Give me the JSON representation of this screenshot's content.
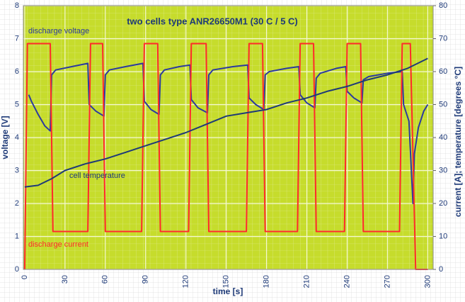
{
  "chart_data": {
    "type": "line",
    "title": "two cells type ANR26650M1 (30 C / 5 C)",
    "x_label": "time [s]",
    "y_label": "voltage [V]",
    "y2_label": "current [A]; temperature [degrees °C]",
    "xlim": [
      -1,
      304
    ],
    "xticks": [
      0,
      30,
      60,
      90,
      120,
      150,
      180,
      210,
      240,
      270,
      300
    ],
    "ylim": [
      0,
      8
    ],
    "yticks": [
      0,
      1,
      2,
      3,
      4,
      5,
      6,
      7,
      8
    ],
    "y2lim": [
      0,
      80
    ],
    "y2ticks": [
      0,
      10,
      20,
      30,
      40,
      50,
      60,
      70,
      80
    ],
    "grid": true,
    "annotations": [
      "discharge voltage",
      "cell temperature",
      "discharge current"
    ],
    "series": [
      {
        "name": "discharge voltage",
        "color": "#2b3aa0",
        "x": [
          3,
          5,
          10,
          15,
          19,
          20,
          23,
          35,
          47,
          48,
          53,
          59,
          60,
          63,
          75,
          88,
          89,
          94,
          100,
          101,
          104,
          115,
          123,
          124,
          129,
          136,
          137,
          140,
          155,
          166,
          167,
          172,
          178,
          179,
          182,
          195,
          204,
          205,
          210,
          216,
          217,
          220,
          232,
          239,
          240,
          245,
          251,
          252,
          256,
          270,
          281,
          282,
          286,
          289,
          290,
          293,
          297,
          300
        ],
        "values": [
          5.3,
          5.1,
          4.7,
          4.35,
          4.2,
          5.9,
          6.05,
          6.15,
          6.25,
          5.0,
          4.8,
          4.65,
          5.9,
          6.05,
          6.15,
          6.25,
          5.1,
          4.85,
          4.7,
          5.9,
          6.05,
          6.15,
          6.2,
          5.15,
          4.9,
          4.75,
          5.9,
          6.05,
          6.15,
          6.2,
          5.2,
          5.0,
          4.85,
          5.9,
          6.0,
          6.1,
          6.15,
          5.3,
          5.05,
          4.9,
          5.8,
          5.95,
          6.1,
          6.15,
          5.4,
          5.2,
          5.05,
          5.75,
          5.85,
          5.95,
          6.0,
          5.0,
          4.5,
          2.0,
          3.5,
          4.3,
          4.8,
          5.0
        ]
      },
      {
        "name": "discharge current",
        "color": "#ff2a2a",
        "axis": "y2",
        "x": [
          0,
          2,
          19,
          21,
          47,
          49,
          58,
          60,
          87,
          89,
          99,
          101,
          122,
          124,
          135,
          137,
          165,
          167,
          177,
          179,
          203,
          205,
          215,
          217,
          238,
          240,
          250,
          252,
          279,
          281,
          287,
          291,
          300
        ],
        "values": [
          0,
          68.5,
          68.5,
          11.5,
          11.5,
          68.5,
          68.5,
          11.5,
          11.5,
          68.5,
          68.5,
          11.5,
          11.5,
          68.5,
          68.5,
          11.5,
          11.5,
          68.5,
          68.5,
          11.5,
          11.5,
          68.5,
          68.5,
          11.5,
          11.5,
          68.5,
          68.5,
          11.5,
          11.5,
          68.5,
          68.5,
          0,
          0
        ]
      },
      {
        "name": "cell temperature",
        "color": "#1e3a78",
        "axis": "y2",
        "x": [
          0,
          10,
          20,
          30,
          45,
          60,
          75,
          90,
          105,
          120,
          135,
          150,
          165,
          180,
          195,
          210,
          225,
          240,
          255,
          270,
          285,
          300
        ],
        "values": [
          25,
          25.5,
          27.5,
          30,
          32,
          33.5,
          35.5,
          37.5,
          39.5,
          41.5,
          44,
          46.5,
          47.5,
          48.5,
          50.5,
          52,
          54,
          55.5,
          57.5,
          59,
          61,
          64
        ]
      }
    ]
  }
}
